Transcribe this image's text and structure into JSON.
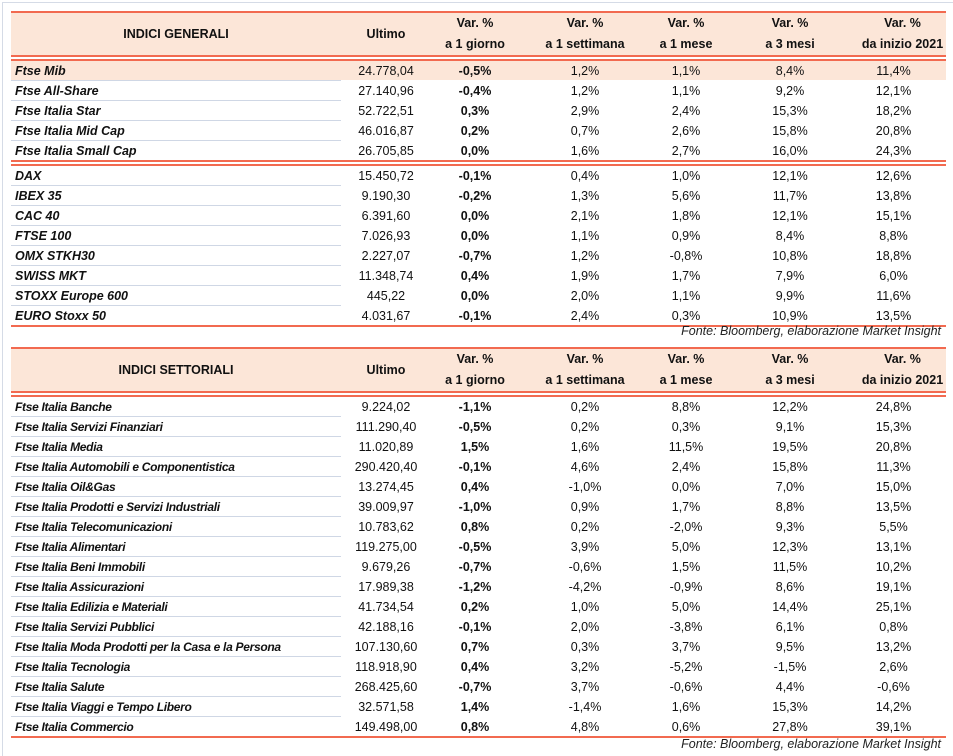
{
  "colors": {
    "accent_line": "#f26a50",
    "header_bg": "#fce6d8",
    "row_divider": "#cfd7e5"
  },
  "general": {
    "headers": [
      "INDICI GENERALI",
      "Ultimo",
      [
        "Var. %",
        "a 1 giorno"
      ],
      [
        "Var. %",
        "a 1 settimana"
      ],
      [
        "Var. %",
        "a 1 mese"
      ],
      [
        "Var. %",
        "a 3 mesi"
      ],
      [
        "Var. %",
        "da inizio 2021"
      ]
    ],
    "groups": [
      [
        [
          "Ftse Mib",
          "24.778,04",
          "-0,5%",
          "1,2%",
          "1,1%",
          "8,4%",
          "11,4%"
        ],
        [
          "Ftse All-Share",
          "27.140,96",
          "-0,4%",
          "1,2%",
          "1,1%",
          "9,2%",
          "12,1%"
        ],
        [
          "Ftse Italia Star",
          "52.722,51",
          "0,3%",
          "2,9%",
          "2,4%",
          "15,3%",
          "18,2%"
        ],
        [
          "Ftse Italia Mid Cap",
          "46.016,87",
          "0,2%",
          "0,7%",
          "2,6%",
          "15,8%",
          "20,8%"
        ],
        [
          "Ftse Italia Small Cap",
          "26.705,85",
          "0,0%",
          "1,6%",
          "2,7%",
          "16,0%",
          "24,3%"
        ]
      ],
      [
        [
          "DAX",
          "15.450,72",
          "-0,1%",
          "0,4%",
          "1,0%",
          "12,1%",
          "12,6%"
        ],
        [
          "IBEX 35",
          "9.190,30",
          "-0,2%",
          "1,3%",
          "5,6%",
          "11,7%",
          "13,8%"
        ],
        [
          "CAC 40",
          "6.391,60",
          "0,0%",
          "2,1%",
          "1,8%",
          "12,1%",
          "15,1%"
        ],
        [
          "FTSE 100",
          "7.026,93",
          "0,0%",
          "1,1%",
          "0,9%",
          "8,4%",
          "8,8%"
        ],
        [
          "OMX STKH30",
          "2.227,07",
          "-0,7%",
          "1,2%",
          "-0,8%",
          "10,8%",
          "18,8%"
        ],
        [
          "SWISS MKT",
          "11.348,74",
          "0,4%",
          "1,9%",
          "1,7%",
          "7,9%",
          "6,0%"
        ],
        [
          "STOXX Europe 600",
          "445,22",
          "0,0%",
          "2,0%",
          "1,1%",
          "9,9%",
          "11,6%"
        ],
        [
          "EURO Stoxx 50",
          "4.031,67",
          "-0,1%",
          "2,4%",
          "0,3%",
          "10,9%",
          "13,5%"
        ]
      ]
    ],
    "source": "Fonte: Bloomberg, elaborazione Market Insight"
  },
  "sector": {
    "headers": [
      "INDICI SETTORIALI",
      "Ultimo",
      [
        "Var. %",
        "a 1 giorno"
      ],
      [
        "Var. %",
        "a 1 settimana"
      ],
      [
        "Var. %",
        "a 1 mese"
      ],
      [
        "Var. %",
        "a 3 mesi"
      ],
      [
        "Var. %",
        "da inizio 2021"
      ]
    ],
    "groups": [
      [
        [
          "Ftse Italia Banche",
          "9.224,02",
          "-1,1%",
          "0,2%",
          "8,8%",
          "12,2%",
          "24,8%"
        ],
        [
          "Ftse Italia Servizi Finanziari",
          "111.290,40",
          "-0,5%",
          "0,2%",
          "0,3%",
          "9,1%",
          "15,3%"
        ],
        [
          "Ftse Italia Media",
          "11.020,89",
          "1,5%",
          "1,6%",
          "11,5%",
          "19,5%",
          "20,8%"
        ],
        [
          "Ftse Italia Automobili e Componentistica",
          "290.420,40",
          "-0,1%",
          "4,6%",
          "2,4%",
          "15,8%",
          "11,3%"
        ],
        [
          "Ftse Italia Oil&Gas",
          "13.274,45",
          "0,4%",
          "-1,0%",
          "0,0%",
          "7,0%",
          "15,0%"
        ],
        [
          "Ftse Italia Prodotti e Servizi Industriali",
          "39.009,97",
          "-1,0%",
          "0,9%",
          "1,7%",
          "8,8%",
          "13,5%"
        ],
        [
          "Ftse Italia Telecomunicazioni",
          "10.783,62",
          "0,8%",
          "0,2%",
          "-2,0%",
          "9,3%",
          "5,5%"
        ],
        [
          "Ftse Italia Alimentari",
          "119.275,00",
          "-0,5%",
          "3,9%",
          "5,0%",
          "12,3%",
          "13,1%"
        ],
        [
          "Ftse Italia Beni Immobili",
          "9.679,26",
          "-0,7%",
          "-0,6%",
          "1,5%",
          "11,5%",
          "10,2%"
        ],
        [
          "Ftse Italia Assicurazioni",
          "17.989,38",
          "-1,2%",
          "-4,2%",
          "-0,9%",
          "8,6%",
          "19,1%"
        ],
        [
          "Ftse Italia Edilizia e Materiali",
          "41.734,54",
          "0,2%",
          "1,0%",
          "5,0%",
          "14,4%",
          "25,1%"
        ],
        [
          "Ftse Italia Servizi Pubblici",
          "42.188,16",
          "-0,1%",
          "2,0%",
          "-3,8%",
          "6,1%",
          "0,8%"
        ],
        [
          "Ftse Italia Moda Prodotti per la Casa e la Persona",
          "107.130,60",
          "0,7%",
          "0,3%",
          "3,7%",
          "9,5%",
          "13,2%"
        ],
        [
          "Ftse Italia Tecnologia",
          "118.918,90",
          "0,4%",
          "3,2%",
          "-5,2%",
          "-1,5%",
          "2,6%"
        ],
        [
          "Ftse Italia Salute",
          "268.425,60",
          "-0,7%",
          "3,7%",
          "-0,6%",
          "4,4%",
          "-0,6%"
        ],
        [
          "Ftse Italia Viaggi e Tempo Libero",
          "32.571,58",
          "1,4%",
          "-1,4%",
          "1,6%",
          "15,3%",
          "14,2%"
        ],
        [
          "Ftse Italia Commercio",
          "149.498,00",
          "0,8%",
          "4,8%",
          "0,6%",
          "27,8%",
          "39,1%"
        ]
      ]
    ],
    "source": "Fonte: Bloomberg, elaborazione Market Insight"
  }
}
